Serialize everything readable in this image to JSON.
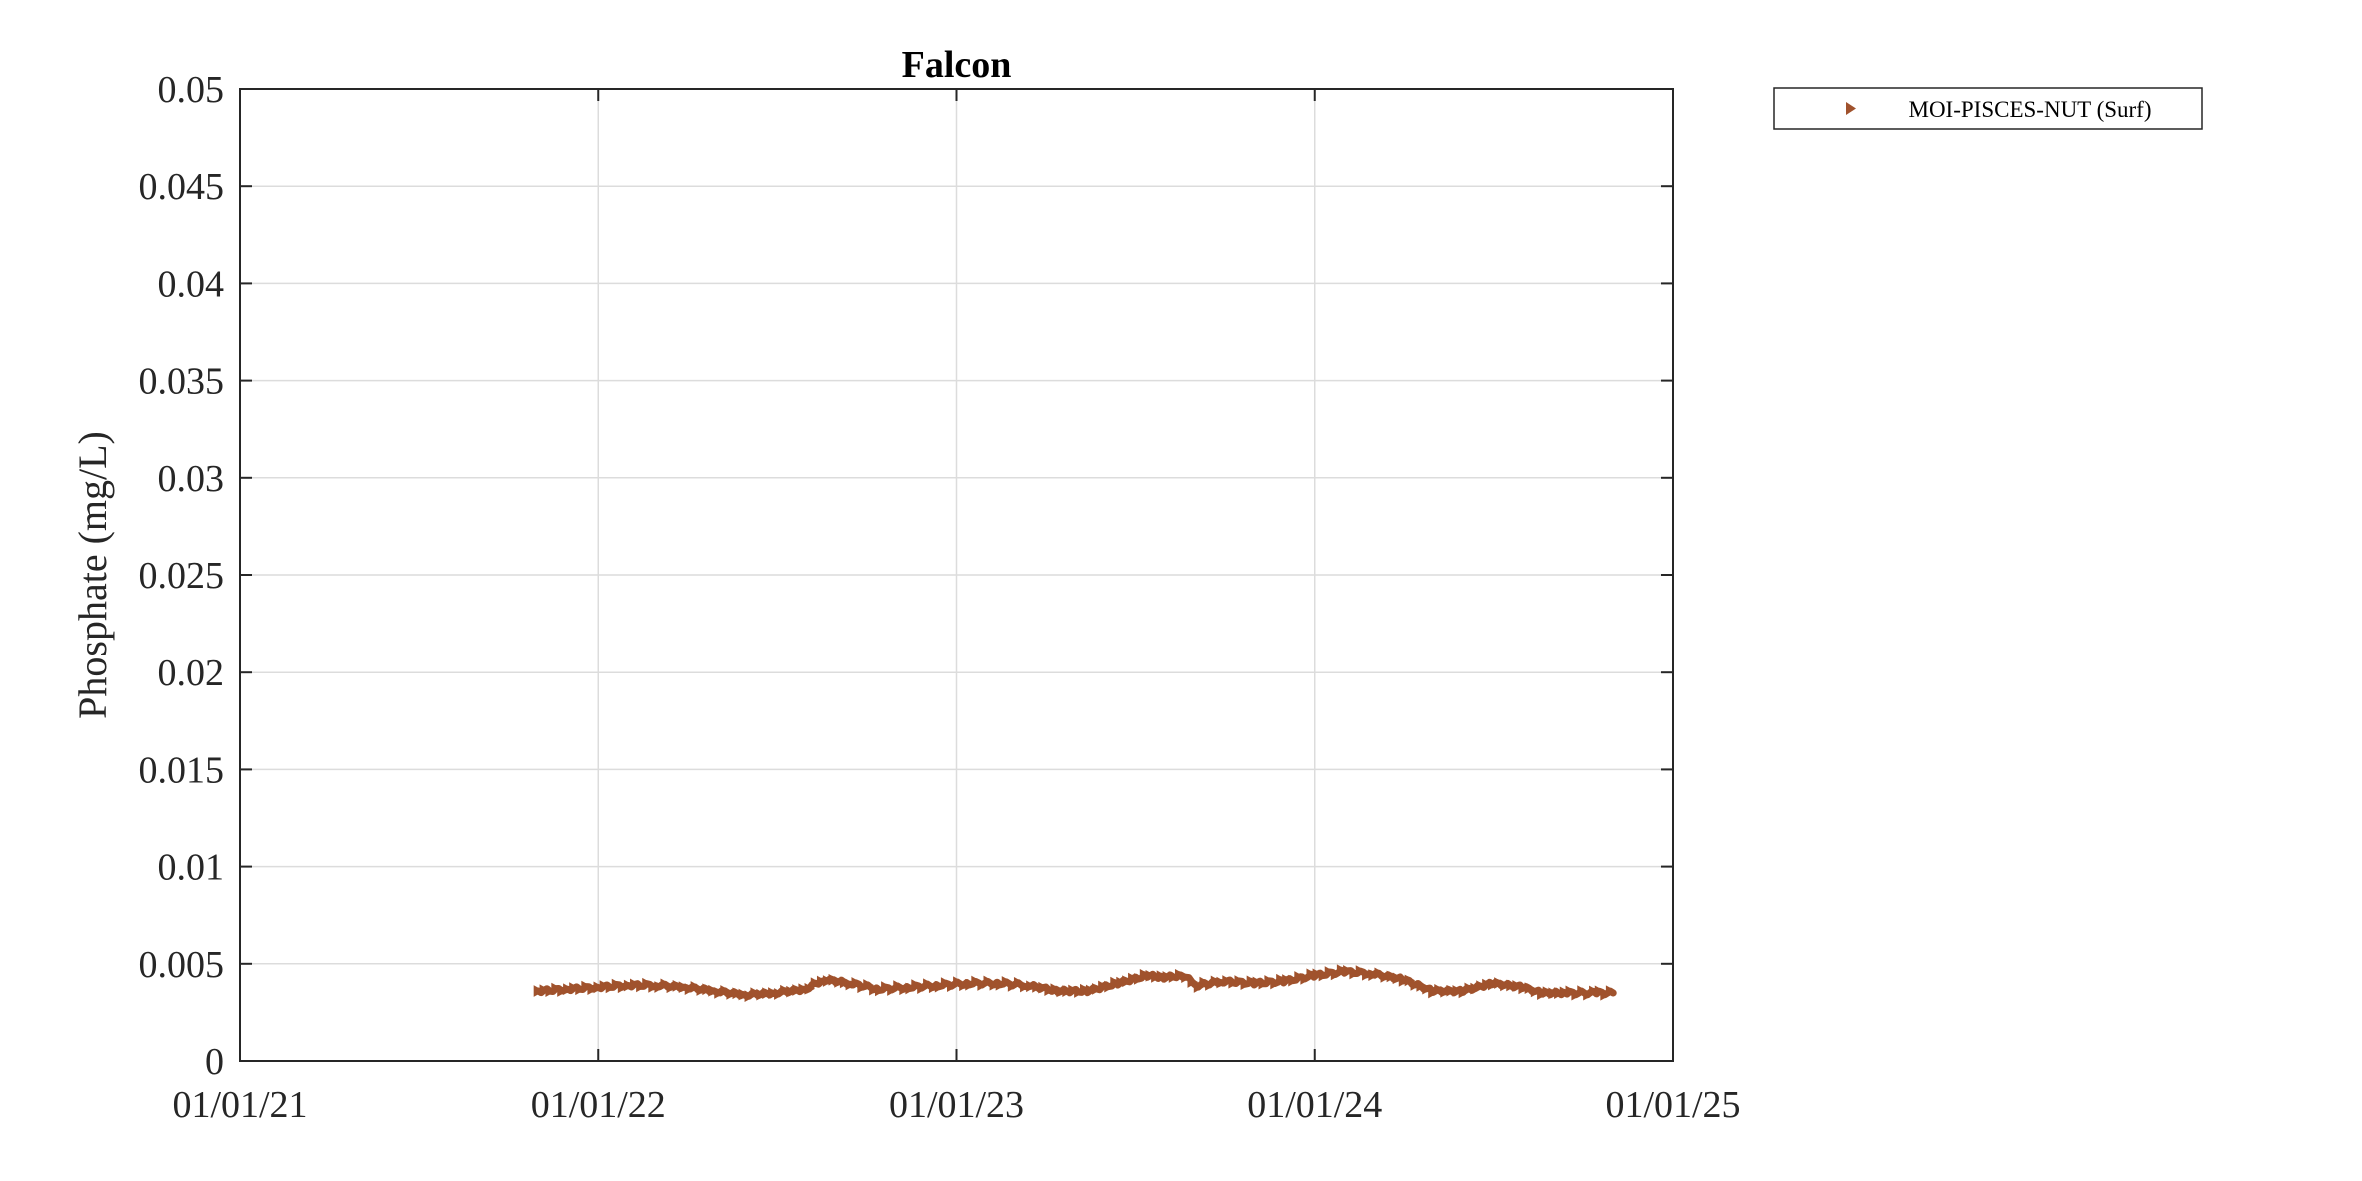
{
  "chart_data": {
    "type": "line",
    "title": "Falcon",
    "xlabel": "",
    "ylabel": "Phosphate (mg/L)",
    "x_ticks": [
      "01/01/21",
      "01/01/22",
      "01/01/23",
      "01/01/24",
      "01/01/25"
    ],
    "x_range": [
      "2021-01-01",
      "2025-01-01"
    ],
    "ylim": [
      0,
      0.05
    ],
    "y_ticks": [
      "0",
      "0.005",
      "0.01",
      "0.015",
      "0.02",
      "0.025",
      "0.03",
      "0.035",
      "0.04",
      "0.045",
      "0.05"
    ],
    "grid": true,
    "legend_position": "outside top-right",
    "series": [
      {
        "name": "MOI-PISCES-NUT (Surf)",
        "color": "#A0522D",
        "marker": "right-triangle",
        "x": [
          "2021-11-01",
          "2021-12-01",
          "2022-01-01",
          "2022-02-01",
          "2022-03-01",
          "2022-04-01",
          "2022-05-01",
          "2022-06-01",
          "2022-07-01",
          "2022-08-01",
          "2022-08-20",
          "2022-09-15",
          "2022-10-15",
          "2022-11-15",
          "2022-12-15",
          "2023-01-15",
          "2023-02-15",
          "2023-03-15",
          "2023-04-15",
          "2023-05-15",
          "2023-06-15",
          "2023-07-15",
          "2023-08-01",
          "2023-08-20",
          "2023-09-05",
          "2023-10-01",
          "2023-11-01",
          "2023-12-01",
          "2024-01-01",
          "2024-02-01",
          "2024-03-01",
          "2024-04-01",
          "2024-05-01",
          "2024-06-01",
          "2024-07-01",
          "2024-08-01",
          "2024-08-20",
          "2024-09-15",
          "2024-10-15",
          "2024-11-01"
        ],
        "y": [
          0.0036,
          0.0037,
          0.0038,
          0.0039,
          0.0039,
          0.0038,
          0.0036,
          0.0034,
          0.0035,
          0.0037,
          0.0042,
          0.004,
          0.0037,
          0.0038,
          0.0039,
          0.004,
          0.004,
          0.0039,
          0.0036,
          0.0036,
          0.004,
          0.0044,
          0.0043,
          0.0044,
          0.0039,
          0.0041,
          0.004,
          0.0041,
          0.0044,
          0.0046,
          0.0045,
          0.0042,
          0.0036,
          0.0036,
          0.004,
          0.0038,
          0.0035,
          0.0035,
          0.0035,
          0.0035
        ]
      }
    ]
  }
}
